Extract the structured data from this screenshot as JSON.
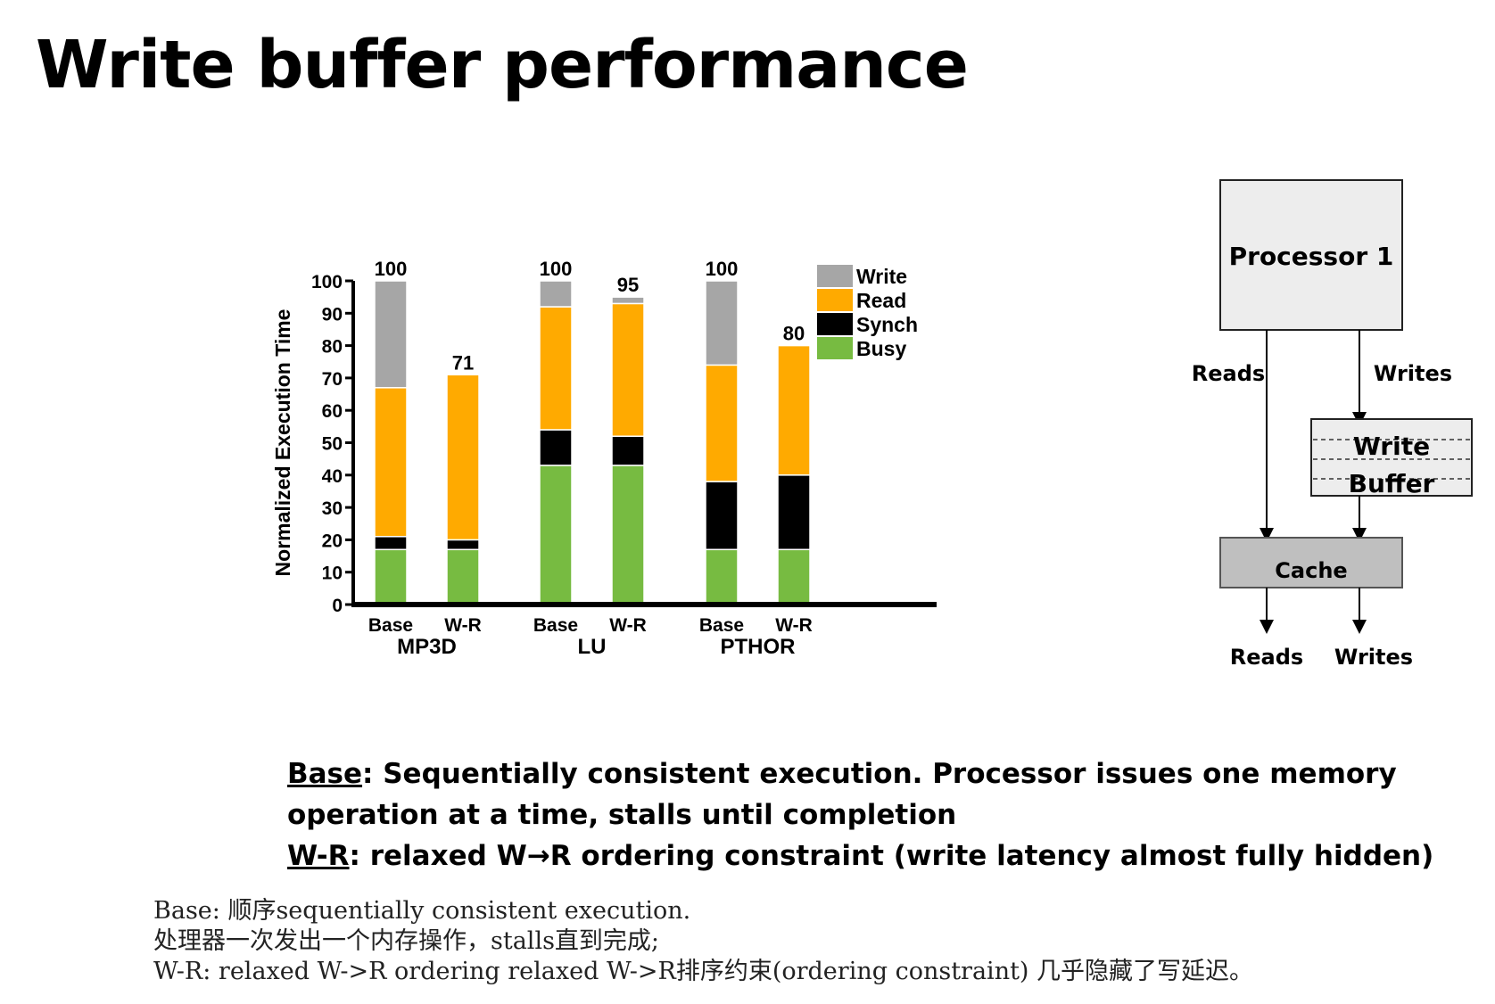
{
  "title": "Write buffer performance",
  "chart_data": {
    "type": "bar",
    "stacked": true,
    "ylabel": "Normalized Execution Time",
    "ylim": [
      0,
      100
    ],
    "yticks": [
      0,
      10,
      20,
      30,
      40,
      50,
      60,
      70,
      80,
      90,
      100
    ],
    "groups": [
      {
        "name": "MP3D",
        "bars": [
          {
            "label": "Base",
            "total": 100,
            "busy": 17,
            "synch": 4,
            "read": 46,
            "write": 33
          },
          {
            "label": "W-R",
            "total": 71,
            "busy": 17,
            "synch": 3,
            "read": 51,
            "write": 0
          }
        ]
      },
      {
        "name": "LU",
        "bars": [
          {
            "label": "Base",
            "total": 100,
            "busy": 43,
            "synch": 11,
            "read": 38,
            "write": 8
          },
          {
            "label": "W-R",
            "total": 95,
            "busy": 43,
            "synch": 9,
            "read": 41,
            "write": 2
          }
        ]
      },
      {
        "name": "PTHOR",
        "bars": [
          {
            "label": "Base",
            "total": 100,
            "busy": 17,
            "synch": 21,
            "read": 36,
            "write": 26
          },
          {
            "label": "W-R",
            "total": 80,
            "busy": 17,
            "synch": 23,
            "read": 40,
            "write": 0
          }
        ]
      }
    ],
    "legend": [
      {
        "key": "write",
        "name": "Write",
        "color": "#a6a6a6"
      },
      {
        "key": "read",
        "name": "Read",
        "color": "#ffaa00"
      },
      {
        "key": "synch",
        "name": "Synch",
        "color": "#000000"
      },
      {
        "key": "busy",
        "name": "Busy",
        "color": "#77bb41"
      }
    ],
    "legend_position": "top-right"
  },
  "diagram": {
    "processor": "Processor 1",
    "write_buffer_line1": "Write",
    "write_buffer_line2": "Buffer",
    "cache": "Cache",
    "reads_top": "Reads",
    "writes_top": "Writes",
    "reads_bottom": "Reads",
    "writes_bottom": "Writes"
  },
  "notes": {
    "base_term": "Base",
    "base_text": ": Sequentially consistent execution. Processor issues one memory operation at a time, stalls until completion",
    "wr_term": "W-R",
    "wr_text": ": relaxed W→R ordering constraint (write latency almost fully hidden)"
  },
  "chinese_notes": [
    "Base: 顺序sequentially consistent execution.",
    "处理器一次发出一个内存操作，stalls直到完成;",
    "W-R: relaxed W->R ordering relaxed W->R排序约束(ordering constraint) 几乎隐藏了写延迟。"
  ]
}
